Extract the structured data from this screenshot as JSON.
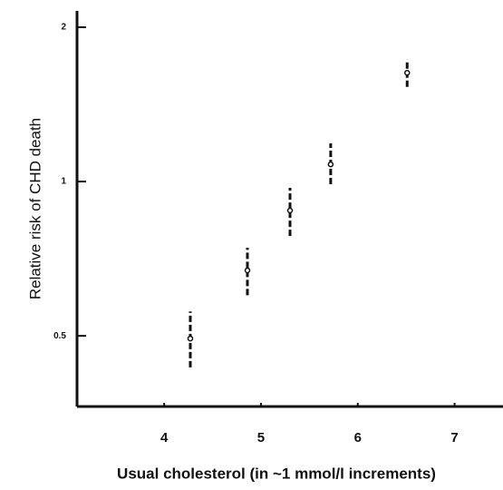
{
  "chart_data": {
    "type": "scatter",
    "x_label": "Usual cholesterol (in ~1 mmol/l increments)",
    "y_label": "Relative risk of CHD death",
    "x": [
      4.27,
      4.86,
      5.3,
      5.72,
      6.51
    ],
    "values": [
      0.494,
      0.671,
      0.878,
      1.08,
      1.63
    ],
    "low": [
      0.434,
      0.6,
      0.783,
      0.988,
      1.53
    ],
    "high": [
      0.558,
      0.743,
      0.972,
      1.187,
      1.73
    ],
    "color": "#111111",
    "xlim": [
      3.1,
      7.5
    ],
    "xticks": [
      4,
      5,
      6,
      7
    ],
    "ylim": [
      0.364,
      2.17
    ],
    "yticks": [
      0.5,
      1,
      2
    ],
    "y_log": true
  }
}
